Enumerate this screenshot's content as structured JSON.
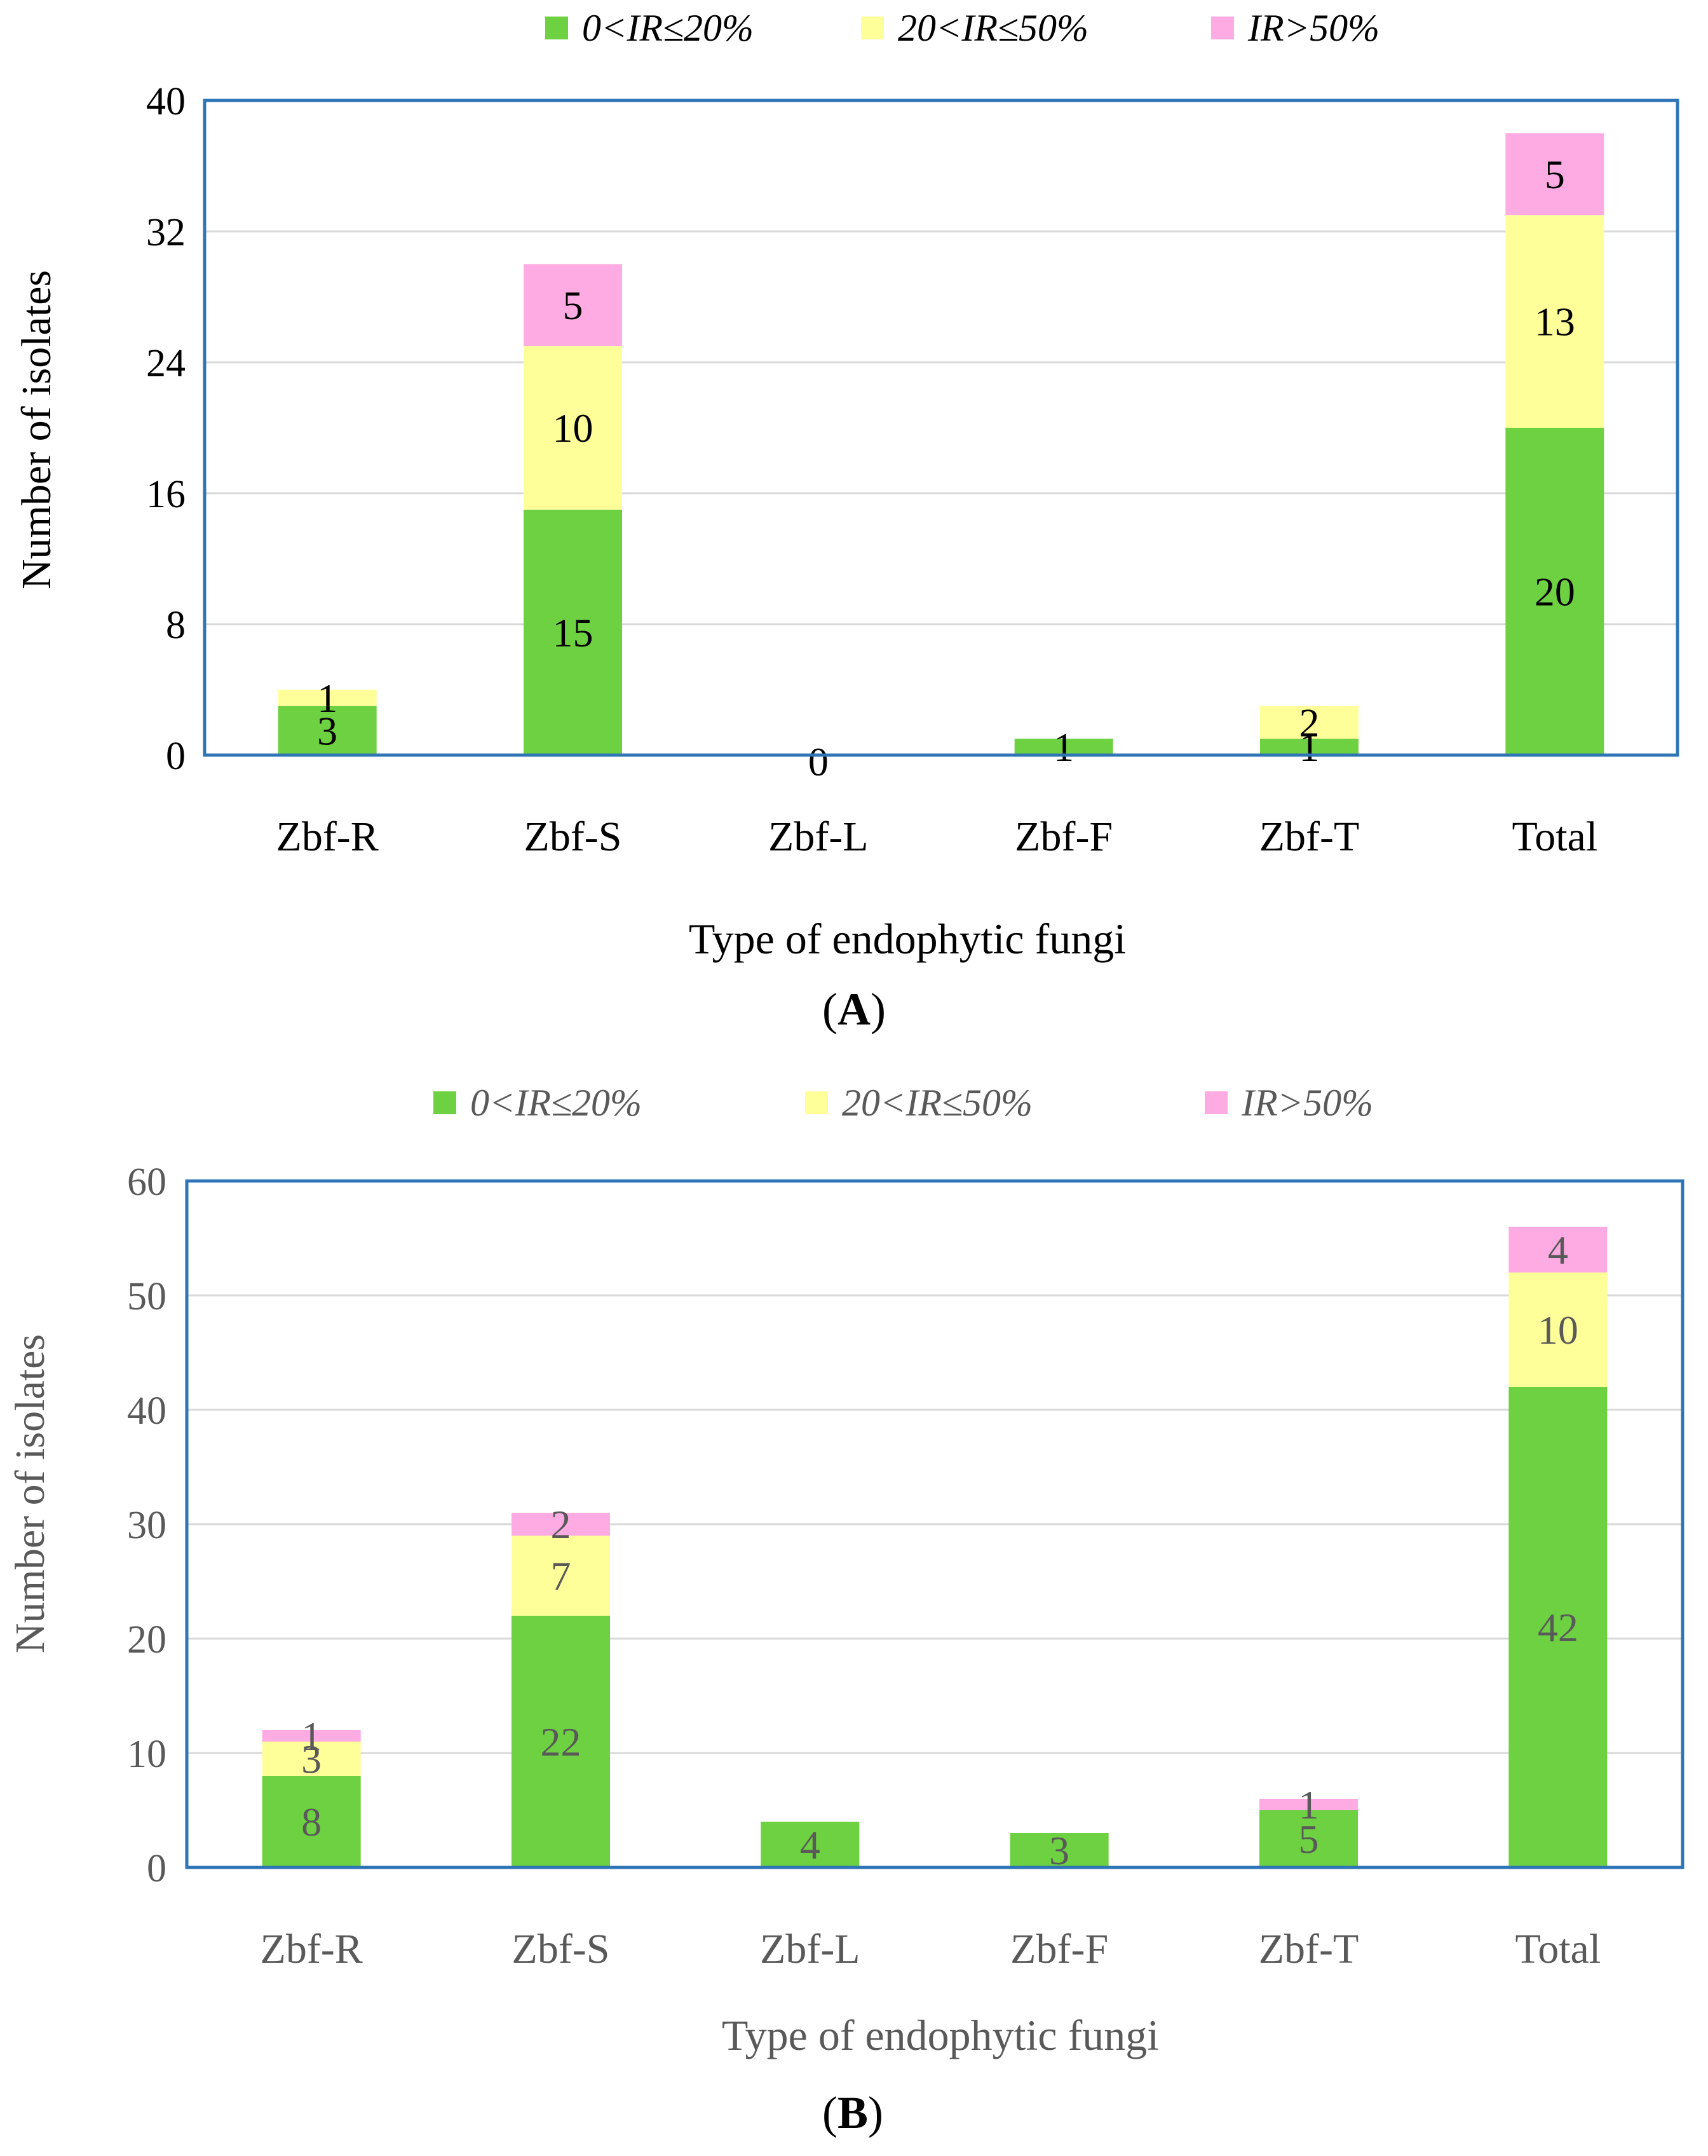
{
  "colors": {
    "green": "#6DD142",
    "yellow": "#FFFF99",
    "pink": "#FFABE3",
    "frame": "#2E75B6",
    "grid": "#D9D9D9",
    "text_a": "#000000",
    "text_b": "#595959"
  },
  "chart_data": [
    {
      "type": "bar",
      "stacked": true,
      "panel_label": "A",
      "legend": [
        "0<IR≤20%",
        "20<IR≤50%",
        "IR>50%"
      ],
      "legend_position": "top",
      "categories": [
        "Zbf-R",
        "Zbf-S",
        "Zbf-L",
        "Zbf-F",
        "Zbf-T",
        "Total"
      ],
      "series": [
        {
          "name": "0<IR≤20%",
          "color_key": "green",
          "values": [
            3,
            15,
            0,
            1,
            1,
            20
          ]
        },
        {
          "name": "20<IR≤50%",
          "color_key": "yellow",
          "values": [
            1,
            10,
            0,
            0,
            2,
            13
          ]
        },
        {
          "name": "IR>50%",
          "color_key": "pink",
          "values": [
            0,
            5,
            0,
            0,
            0,
            5
          ]
        }
      ],
      "data_labels": [
        {
          "category": 0,
          "series": 0,
          "text": "3"
        },
        {
          "category": 0,
          "series": 1,
          "text": "1"
        },
        {
          "category": 1,
          "series": 0,
          "text": "15"
        },
        {
          "category": 1,
          "series": 1,
          "text": "10"
        },
        {
          "category": 1,
          "series": 2,
          "text": "5"
        },
        {
          "category": 2,
          "series": 0,
          "text": "0"
        },
        {
          "category": 3,
          "series": 0,
          "text": "1"
        },
        {
          "category": 4,
          "series": 0,
          "text": "1"
        },
        {
          "category": 4,
          "series": 1,
          "text": "2"
        },
        {
          "category": 5,
          "series": 0,
          "text": "20"
        },
        {
          "category": 5,
          "series": 1,
          "text": "13"
        },
        {
          "category": 5,
          "series": 2,
          "text": "5"
        }
      ],
      "ylim": [
        0,
        40
      ],
      "yticks": [
        "0",
        "8",
        "16",
        "24",
        "32",
        "40"
      ],
      "grid": true,
      "xlabel": "Type of endophytic fungi",
      "ylabel": "Number of isolates"
    },
    {
      "type": "bar",
      "stacked": true,
      "panel_label": "B",
      "legend": [
        "0<IR≤20%",
        "20<IR≤50%",
        "IR>50%"
      ],
      "legend_position": "top",
      "categories": [
        "Zbf-R",
        "Zbf-S",
        "Zbf-L",
        "Zbf-F",
        "Zbf-T",
        "Total"
      ],
      "series": [
        {
          "name": "0<IR≤20%",
          "color_key": "green",
          "values": [
            8,
            22,
            4,
            3,
            5,
            42
          ]
        },
        {
          "name": "20<IR≤50%",
          "color_key": "yellow",
          "values": [
            3,
            7,
            0,
            0,
            0,
            10
          ]
        },
        {
          "name": "IR>50%",
          "color_key": "pink",
          "values": [
            1,
            2,
            0,
            0,
            1,
            4
          ]
        }
      ],
      "data_labels": [
        {
          "category": 0,
          "series": 0,
          "text": "8"
        },
        {
          "category": 0,
          "series": 1,
          "text": "3"
        },
        {
          "category": 0,
          "series": 2,
          "text": "1"
        },
        {
          "category": 1,
          "series": 0,
          "text": "22"
        },
        {
          "category": 1,
          "series": 1,
          "text": "7"
        },
        {
          "category": 1,
          "series": 2,
          "text": "2"
        },
        {
          "category": 2,
          "series": 0,
          "text": "4"
        },
        {
          "category": 3,
          "series": 0,
          "text": "3"
        },
        {
          "category": 4,
          "series": 0,
          "text": "5"
        },
        {
          "category": 4,
          "series": 2,
          "text": "1"
        },
        {
          "category": 5,
          "series": 0,
          "text": "42"
        },
        {
          "category": 5,
          "series": 1,
          "text": "10"
        },
        {
          "category": 5,
          "series": 2,
          "text": "4"
        }
      ],
      "ylim": [
        0,
        60
      ],
      "yticks": [
        "0",
        "10",
        "20",
        "30",
        "40",
        "50",
        "60"
      ],
      "grid": true,
      "xlabel": "Type of endophytic fungi",
      "ylabel": "Number of isolates"
    }
  ]
}
